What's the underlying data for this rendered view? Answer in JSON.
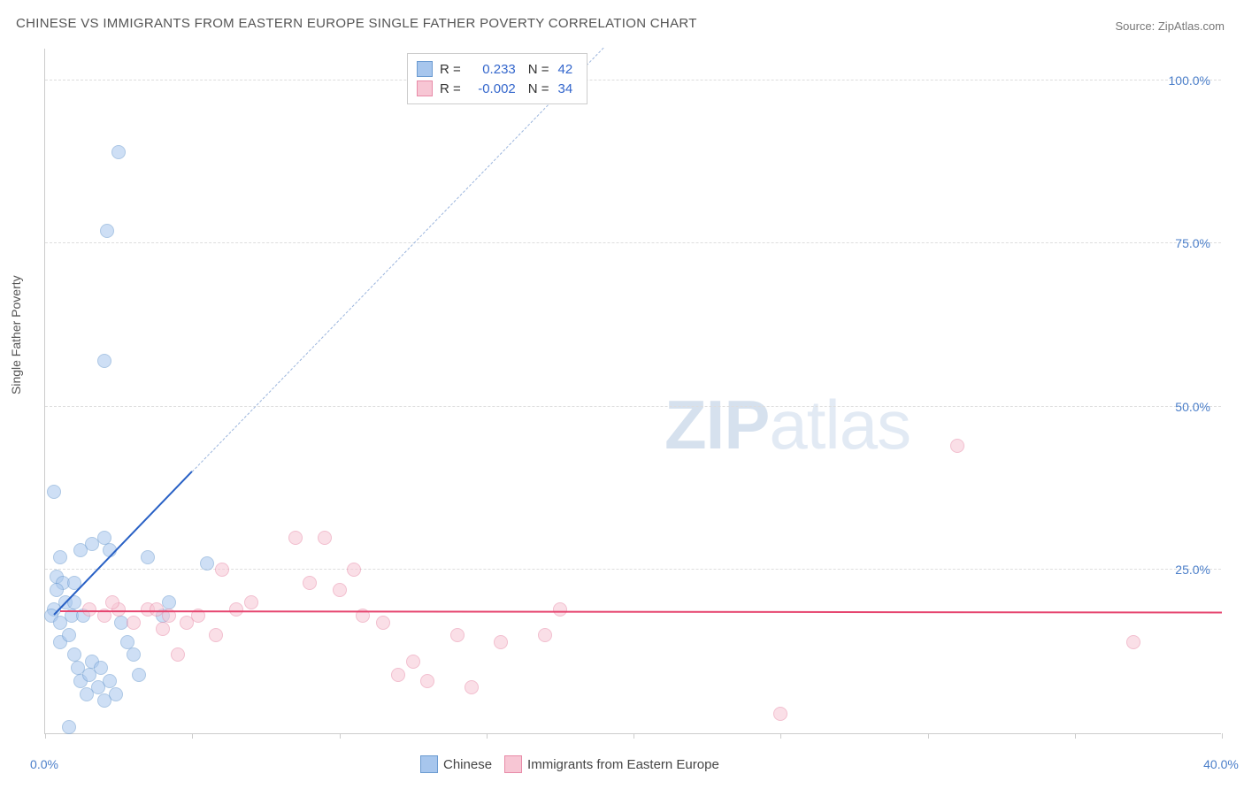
{
  "title": "CHINESE VS IMMIGRANTS FROM EASTERN EUROPE SINGLE FATHER POVERTY CORRELATION CHART",
  "source_label": "Source: ZipAtlas.com",
  "y_axis_label": "Single Father Poverty",
  "watermark": {
    "bold": "ZIP",
    "rest": "atlas"
  },
  "chart": {
    "type": "scatter",
    "background_color": "#ffffff",
    "grid_color": "#dddddd",
    "axis_color": "#cccccc",
    "tick_label_color": "#4a7ec9",
    "tick_fontsize": 14,
    "xlim": [
      0,
      40
    ],
    "ylim": [
      0,
      105
    ],
    "y_gridlines": [
      25,
      50,
      75,
      100
    ],
    "y_tick_labels": [
      "25.0%",
      "50.0%",
      "75.0%",
      "100.0%"
    ],
    "x_ticks": [
      0,
      5,
      10,
      15,
      20,
      25,
      30,
      35,
      40
    ],
    "x_tick_labels_shown": {
      "0": "0.0%",
      "40": "40.0%"
    },
    "marker_radius": 8,
    "marker_opacity": 0.55,
    "series": [
      {
        "name": "Chinese",
        "fill_color": "#a7c6ed",
        "stroke_color": "#6b9bd1",
        "trend_color": "#2860c5",
        "trend_dash_color": "#9bb5dd",
        "R": "0.233",
        "N": "42",
        "trend": {
          "x1": 0.3,
          "y1": 18,
          "x2": 5.0,
          "y2": 40,
          "dash_extend_x": 19,
          "dash_extend_y": 105
        },
        "points": [
          [
            0.3,
            37
          ],
          [
            0.4,
            24
          ],
          [
            0.5,
            27
          ],
          [
            0.6,
            23
          ],
          [
            0.7,
            20
          ],
          [
            0.9,
            18
          ],
          [
            0.5,
            14
          ],
          [
            0.8,
            15
          ],
          [
            1.0,
            12
          ],
          [
            1.1,
            10
          ],
          [
            1.2,
            8
          ],
          [
            1.4,
            6
          ],
          [
            1.5,
            9
          ],
          [
            1.6,
            11
          ],
          [
            1.8,
            7
          ],
          [
            2.0,
            5
          ],
          [
            2.2,
            8
          ],
          [
            2.4,
            6
          ],
          [
            0.3,
            19
          ],
          [
            0.4,
            22
          ],
          [
            1.0,
            23
          ],
          [
            1.2,
            28
          ],
          [
            1.6,
            29
          ],
          [
            2.0,
            30
          ],
          [
            2.2,
            28
          ],
          [
            2.6,
            17
          ],
          [
            2.8,
            14
          ],
          [
            3.0,
            12
          ],
          [
            3.2,
            9
          ],
          [
            3.5,
            27
          ],
          [
            4.0,
            18
          ],
          [
            4.2,
            20
          ],
          [
            5.5,
            26
          ],
          [
            2.0,
            57
          ],
          [
            2.1,
            77
          ],
          [
            2.5,
            89
          ],
          [
            0.2,
            18
          ],
          [
            0.5,
            17
          ],
          [
            1.3,
            18
          ],
          [
            1.0,
            20
          ],
          [
            0.8,
            1
          ],
          [
            1.9,
            10
          ]
        ]
      },
      {
        "name": "Immigrants from Eastern Europe",
        "fill_color": "#f7c6d4",
        "stroke_color": "#e88ba8",
        "trend_color": "#e6456f",
        "R": "-0.002",
        "N": "34",
        "trend": {
          "x1": 0.5,
          "y1": 18.5,
          "x2": 40,
          "y2": 18.3
        },
        "points": [
          [
            1.5,
            19
          ],
          [
            2.0,
            18
          ],
          [
            2.5,
            19
          ],
          [
            3.0,
            17
          ],
          [
            3.5,
            19
          ],
          [
            4.0,
            16
          ],
          [
            4.2,
            18
          ],
          [
            4.8,
            17
          ],
          [
            5.2,
            18
          ],
          [
            5.8,
            15
          ],
          [
            6.0,
            25
          ],
          [
            6.5,
            19
          ],
          [
            8.5,
            30
          ],
          [
            9.0,
            23
          ],
          [
            9.5,
            30
          ],
          [
            10.0,
            22
          ],
          [
            10.5,
            25
          ],
          [
            10.8,
            18
          ],
          [
            11.5,
            17
          ],
          [
            12.0,
            9
          ],
          [
            12.5,
            11
          ],
          [
            13.0,
            8
          ],
          [
            14.0,
            15
          ],
          [
            14.5,
            7
          ],
          [
            15.5,
            14
          ],
          [
            17.0,
            15
          ],
          [
            17.5,
            19
          ],
          [
            25.0,
            3
          ],
          [
            31.0,
            44
          ],
          [
            37.0,
            14
          ],
          [
            2.3,
            20
          ],
          [
            3.8,
            19
          ],
          [
            4.5,
            12
          ],
          [
            7.0,
            20
          ]
        ]
      }
    ]
  },
  "stats_legend": {
    "rows": [
      {
        "swatch_fill": "#a7c6ed",
        "swatch_stroke": "#6b9bd1",
        "R_label": "R =",
        "R_val": "0.233",
        "N_label": "N =",
        "N_val": "42"
      },
      {
        "swatch_fill": "#f7c6d4",
        "swatch_stroke": "#e88ba8",
        "R_label": "R =",
        "R_val": "-0.002",
        "N_label": "N =",
        "N_val": "34"
      }
    ]
  },
  "bottom_legend": {
    "items": [
      {
        "swatch_fill": "#a7c6ed",
        "swatch_stroke": "#6b9bd1",
        "label": "Chinese"
      },
      {
        "swatch_fill": "#f7c6d4",
        "swatch_stroke": "#e88ba8",
        "label": "Immigrants from Eastern Europe"
      }
    ]
  }
}
